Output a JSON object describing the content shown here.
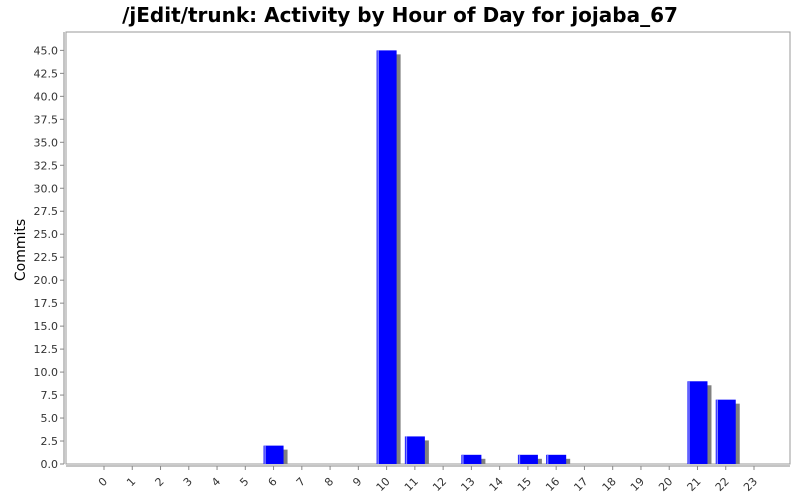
{
  "chart_data": {
    "type": "bar",
    "title": "/jEdit/trunk: Activity by Hour of Day for jojaba_67",
    "xlabel": "",
    "ylabel": "Commits",
    "categories": [
      "0",
      "1",
      "2",
      "3",
      "4",
      "5",
      "6",
      "7",
      "8",
      "9",
      "10",
      "11",
      "12",
      "13",
      "14",
      "15",
      "16",
      "17",
      "18",
      "19",
      "20",
      "21",
      "22",
      "23"
    ],
    "values": [
      0,
      0,
      0,
      0,
      0,
      0,
      2,
      0,
      0,
      0,
      45,
      3,
      0,
      1,
      0,
      1,
      1,
      0,
      0,
      0,
      0,
      9,
      7,
      0
    ],
    "ylim": [
      0,
      47
    ],
    "yticks": [
      "0.0",
      "2.5",
      "5.0",
      "7.5",
      "10.0",
      "12.5",
      "15.0",
      "17.5",
      "20.0",
      "22.5",
      "25.0",
      "27.5",
      "30.0",
      "32.5",
      "35.0",
      "37.5",
      "40.0",
      "42.5",
      "45.0"
    ],
    "grid": false,
    "legend": "none",
    "bar_color": "#0000ff",
    "shadow_color": "#808080"
  }
}
